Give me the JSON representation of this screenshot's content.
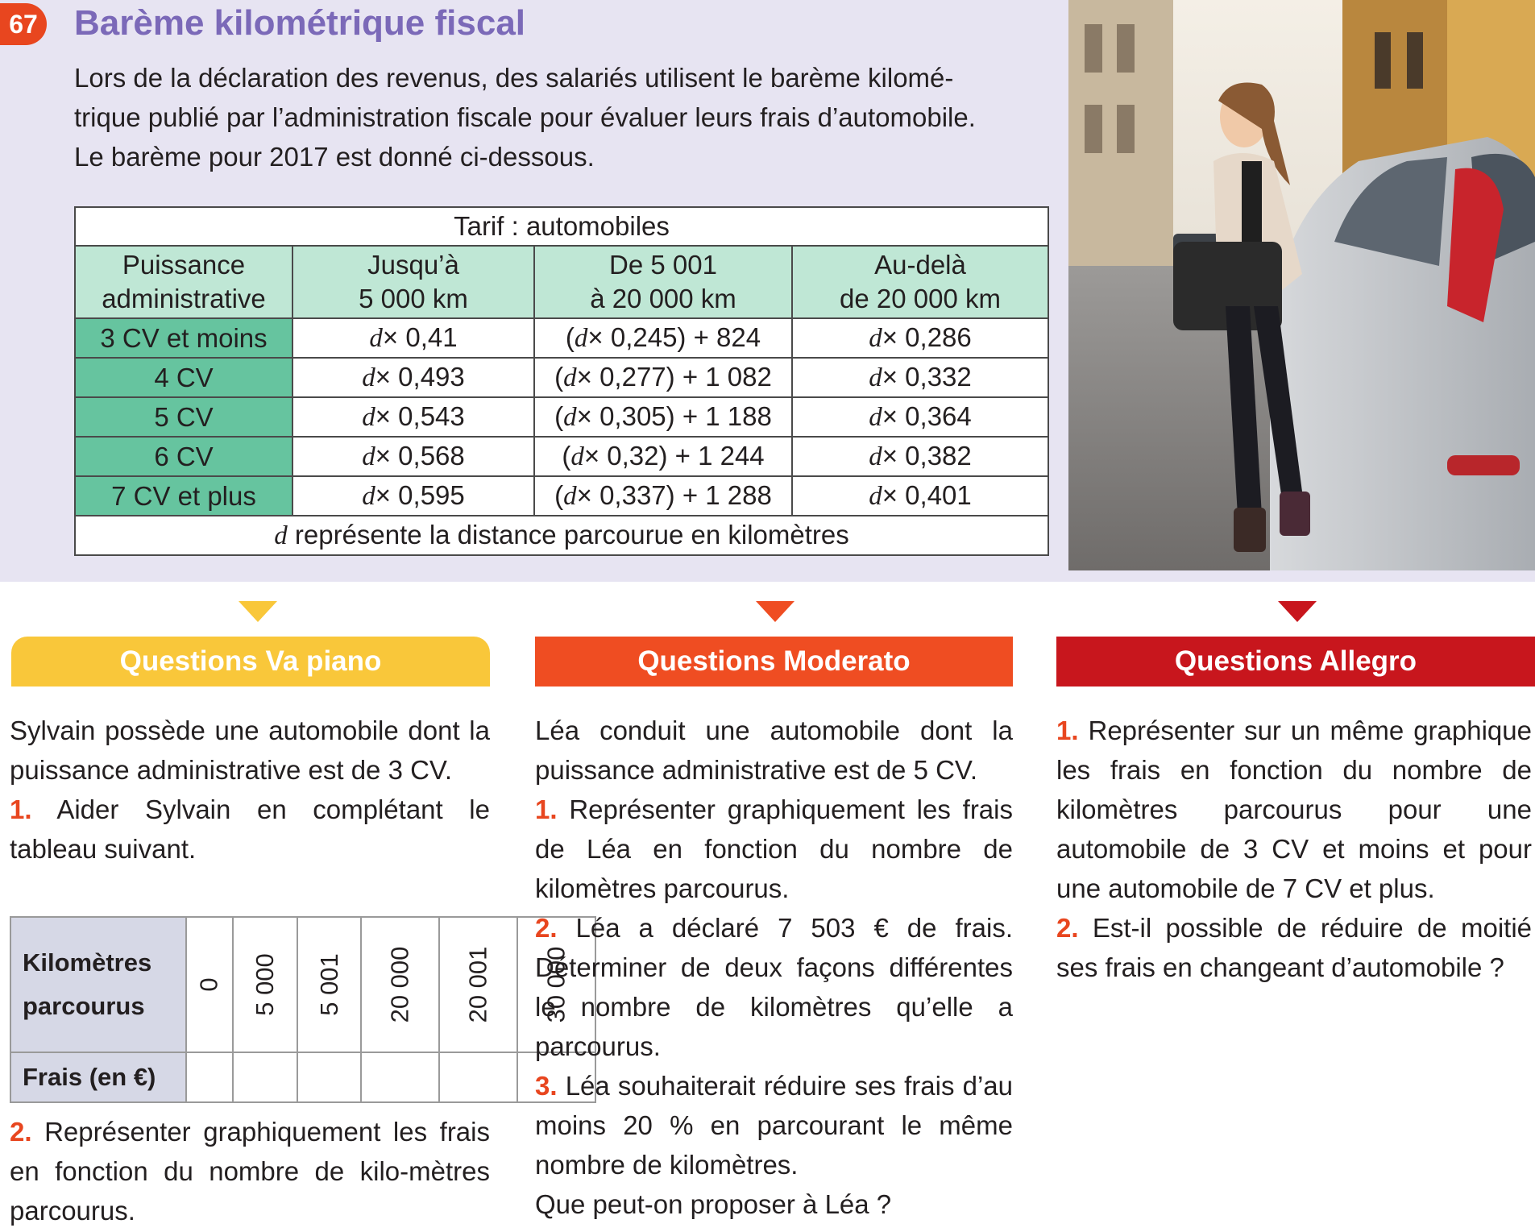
{
  "exercise": {
    "number": "67",
    "title": "Barème kilométrique fiscal",
    "intro_lines": [
      "Lors de la déclaration des revenus, des salariés utilisent le barème kilomé-",
      "trique publié par l’administration fiscale pour évaluer leurs frais d’automobile.",
      "Le barème pour 2017 est donné ci-dessous."
    ]
  },
  "tarif_table": {
    "caption": "Tarif : automobiles",
    "headers": [
      [
        "Puissance",
        "administrative"
      ],
      [
        "Jusqu’à",
        "5 000 km"
      ],
      [
        "De 5 001",
        "à 20 000 km"
      ],
      [
        "Au-delà",
        "de 20 000 km"
      ]
    ],
    "rows": [
      {
        "power": "3 CV et moins",
        "c1": "× 0,41",
        "c2": "× 0,245) + 824",
        "c3": "× 0,286"
      },
      {
        "power": "4 CV",
        "c1": "× 0,493",
        "c2": "× 0,277) + 1 082",
        "c3": "× 0,332"
      },
      {
        "power": "5 CV",
        "c1": "× 0,543",
        "c2": "× 0,305) + 1 188",
        "c3": "× 0,364"
      },
      {
        "power": "6 CV",
        "c1": "× 0,568",
        "c2": "× 0,32) + 1 244",
        "c3": "× 0,382"
      },
      {
        "power": "7 CV et plus",
        "c1": "× 0,595",
        "c2": "× 0,337) + 1 288",
        "c3": "× 0,401"
      }
    ],
    "variable": "d",
    "footer": "représente la distance parcourue en kilomètres"
  },
  "columns": {
    "va_piano": {
      "title": "Questions Va piano",
      "color": "#f9c73a",
      "intro": "Sylvain possède une automobile dont la puissance administrative est de 3 CV.",
      "q1_num": "1.",
      "q1": "Aider Sylvain en complétant le tableau suivant.",
      "table": {
        "row1_label": [
          "Kilomètres",
          "parcourus"
        ],
        "values": [
          "0",
          "5 000",
          "5 001",
          "20 000",
          "20 001",
          "30 000"
        ],
        "row2_label": "Frais (en €)"
      },
      "q2_num": "2.",
      "q2": "Représenter graphiquement les frais en fonction du nombre de kilo-mètres parcourus."
    },
    "moderato": {
      "title": "Questions Moderato",
      "color": "#ef4d22",
      "intro": "Léa conduit une automobile dont la puissance administrative est de 5 CV.",
      "q1_num": "1.",
      "q1": "Représenter graphiquement les frais de Léa en fonction du nombre de kilomètres parcourus.",
      "q2_num": "2.",
      "q2": "Léa a déclaré 7 503 € de frais. Déterminer de deux façons différentes le nombre de kilomètres qu’elle a parcourus.",
      "q3_num": "3.",
      "q3": "Léa souhaiterait réduire ses frais d’au moins 20 % en parcourant le même nombre de kilomètres.",
      "q3b": "Que peut-on proposer à Léa ?"
    },
    "allegro": {
      "title": "Questions Allegro",
      "color": "#c8161d",
      "q1_num": "1.",
      "q1": "Représenter sur un même graphique les frais en fonction du nombre de kilomètres parcourus pour une automobile de 3 CV et moins et pour une automobile de 7 CV et plus.",
      "q2_num": "2.",
      "q2": "Est-il possible de réduire de moitié ses frais en changeant d’automobile ?"
    }
  },
  "colors": {
    "panel_bg": "#e7e4f2",
    "title": "#7b69b8",
    "header_green": "#bfe7d5",
    "row_green": "#66c49f",
    "badge": "#e8461f"
  }
}
